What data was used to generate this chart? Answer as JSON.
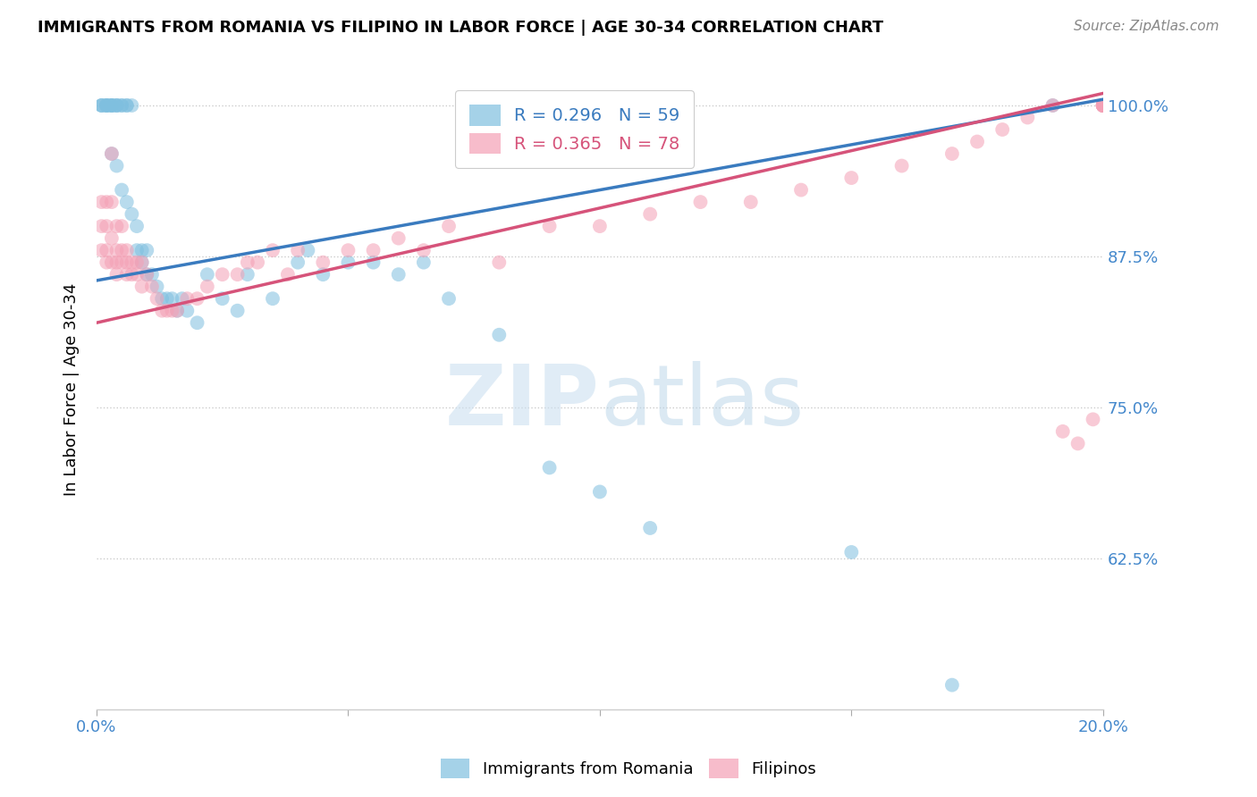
{
  "title": "IMMIGRANTS FROM ROMANIA VS FILIPINO IN LABOR FORCE | AGE 30-34 CORRELATION CHART",
  "source": "Source: ZipAtlas.com",
  "ylabel": "In Labor Force | Age 30-34",
  "xlim": [
    0.0,
    0.2
  ],
  "ylim": [
    0.5,
    1.03
  ],
  "yticks": [
    0.625,
    0.75,
    0.875,
    1.0
  ],
  "ytick_labels": [
    "62.5%",
    "75.0%",
    "87.5%",
    "100.0%"
  ],
  "xticks": [
    0.0,
    0.05,
    0.1,
    0.15,
    0.2
  ],
  "xtick_labels": [
    "0.0%",
    "",
    "",
    "",
    "20.0%"
  ],
  "legend_romania": "R = 0.296   N = 59",
  "legend_filipino": "R = 0.365   N = 78",
  "blue_color": "#7fbfdf",
  "pink_color": "#f4a0b5",
  "line_blue_color": "#3a7bbf",
  "line_pink_color": "#d6537a",
  "watermark_zip": "ZIP",
  "watermark_atlas": "atlas",
  "romania_x": [
    0.001,
    0.001,
    0.001,
    0.002,
    0.002,
    0.002,
    0.002,
    0.003,
    0.003,
    0.003,
    0.003,
    0.003,
    0.004,
    0.004,
    0.004,
    0.004,
    0.005,
    0.005,
    0.005,
    0.006,
    0.006,
    0.006,
    0.007,
    0.007,
    0.008,
    0.008,
    0.009,
    0.009,
    0.01,
    0.01,
    0.011,
    0.012,
    0.013,
    0.014,
    0.015,
    0.016,
    0.017,
    0.018,
    0.02,
    0.022,
    0.025,
    0.028,
    0.03,
    0.035,
    0.04,
    0.042,
    0.045,
    0.05,
    0.055,
    0.06,
    0.065,
    0.07,
    0.08,
    0.09,
    0.1,
    0.11,
    0.15,
    0.17,
    0.19
  ],
  "romania_y": [
    1.0,
    1.0,
    1.0,
    1.0,
    1.0,
    1.0,
    1.0,
    1.0,
    1.0,
    1.0,
    1.0,
    0.96,
    1.0,
    1.0,
    1.0,
    0.95,
    1.0,
    1.0,
    0.93,
    1.0,
    1.0,
    0.92,
    1.0,
    0.91,
    0.9,
    0.88,
    0.88,
    0.87,
    0.88,
    0.86,
    0.86,
    0.85,
    0.84,
    0.84,
    0.84,
    0.83,
    0.84,
    0.83,
    0.82,
    0.86,
    0.84,
    0.83,
    0.86,
    0.84,
    0.87,
    0.88,
    0.86,
    0.87,
    0.87,
    0.86,
    0.87,
    0.84,
    0.81,
    0.7,
    0.68,
    0.65,
    0.63,
    0.52,
    1.0
  ],
  "filipino_x": [
    0.001,
    0.001,
    0.001,
    0.002,
    0.002,
    0.002,
    0.002,
    0.003,
    0.003,
    0.003,
    0.003,
    0.004,
    0.004,
    0.004,
    0.004,
    0.005,
    0.005,
    0.005,
    0.006,
    0.006,
    0.006,
    0.007,
    0.007,
    0.008,
    0.008,
    0.009,
    0.009,
    0.01,
    0.011,
    0.012,
    0.013,
    0.014,
    0.015,
    0.016,
    0.018,
    0.02,
    0.022,
    0.025,
    0.028,
    0.03,
    0.032,
    0.035,
    0.038,
    0.04,
    0.045,
    0.05,
    0.055,
    0.06,
    0.065,
    0.07,
    0.08,
    0.09,
    0.1,
    0.11,
    0.12,
    0.13,
    0.14,
    0.15,
    0.16,
    0.17,
    0.175,
    0.18,
    0.185,
    0.19,
    0.192,
    0.195,
    0.198,
    0.2,
    0.2,
    0.2,
    0.2,
    0.2,
    0.2,
    0.2,
    0.2,
    0.2,
    0.2,
    0.2
  ],
  "filipino_y": [
    0.9,
    0.92,
    0.88,
    0.88,
    0.9,
    0.92,
    0.87,
    0.87,
    0.89,
    0.92,
    0.96,
    0.87,
    0.88,
    0.9,
    0.86,
    0.87,
    0.88,
    0.9,
    0.87,
    0.88,
    0.86,
    0.87,
    0.86,
    0.87,
    0.86,
    0.87,
    0.85,
    0.86,
    0.85,
    0.84,
    0.83,
    0.83,
    0.83,
    0.83,
    0.84,
    0.84,
    0.85,
    0.86,
    0.86,
    0.87,
    0.87,
    0.88,
    0.86,
    0.88,
    0.87,
    0.88,
    0.88,
    0.89,
    0.88,
    0.9,
    0.87,
    0.9,
    0.9,
    0.91,
    0.92,
    0.92,
    0.93,
    0.94,
    0.95,
    0.96,
    0.97,
    0.98,
    0.99,
    1.0,
    0.73,
    0.72,
    0.74,
    1.0,
    1.0,
    1.0,
    1.0,
    1.0,
    1.0,
    1.0,
    1.0,
    1.0,
    1.0,
    1.0
  ]
}
